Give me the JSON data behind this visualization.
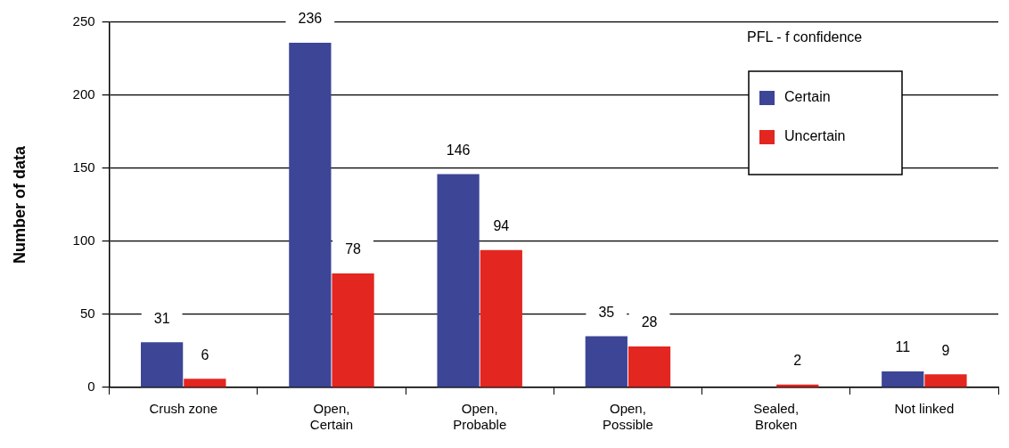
{
  "chart_data": {
    "type": "bar",
    "ylabel": "Number of data",
    "legend_title": "PFL - f confidence",
    "legend": "top right",
    "grid": "y",
    "categories": [
      "Crush zone",
      "Open,\nCertain",
      "Open,\nProbable",
      "Open,\nPossible",
      "Sealed,\nBroken",
      "Not linked"
    ],
    "series": [
      {
        "name": "Certain",
        "color": "#3d4596",
        "values": [
          31,
          236,
          146,
          35,
          0,
          11
        ],
        "value_labels": [
          "31",
          "236",
          "146",
          "35",
          null,
          "11"
        ]
      },
      {
        "name": "Uncertain",
        "color": "#e32620",
        "values": [
          6,
          78,
          94,
          28,
          2,
          9
        ],
        "value_labels": [
          "6",
          "78",
          "94",
          "28",
          "2",
          "9"
        ]
      }
    ],
    "ylim": [
      0,
      250
    ],
    "yticks": [
      0,
      50,
      100,
      150,
      200,
      250
    ]
  }
}
